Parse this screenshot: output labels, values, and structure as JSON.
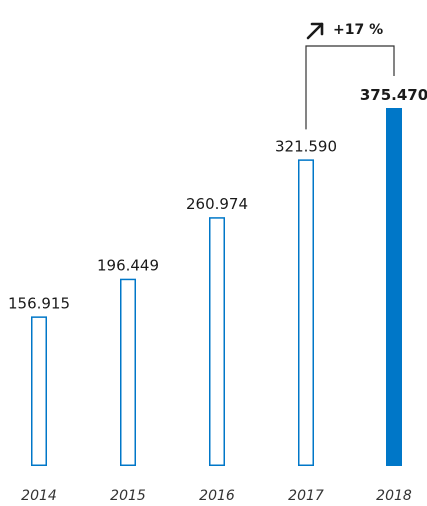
{
  "chart_data": {
    "type": "bar",
    "categories": [
      "2014",
      "2015",
      "2016",
      "2017",
      "2018"
    ],
    "values": [
      156915,
      196449,
      260974,
      321590,
      375470
    ],
    "value_labels": [
      "156.915",
      "196.449",
      "260.974",
      "321.590",
      "375.470"
    ],
    "highlight_index": 4,
    "ylim": [
      0,
      375470
    ],
    "grid": false,
    "legend": "none",
    "annotation": {
      "from_category": "2017",
      "to_category": "2018",
      "text": "+17 %",
      "icon": "arrow-up-right-icon"
    },
    "colors": {
      "accent": "#0077c8",
      "outline": "#0077c8",
      "outline_fill": "#ffffff",
      "bracket": "#333333"
    }
  }
}
